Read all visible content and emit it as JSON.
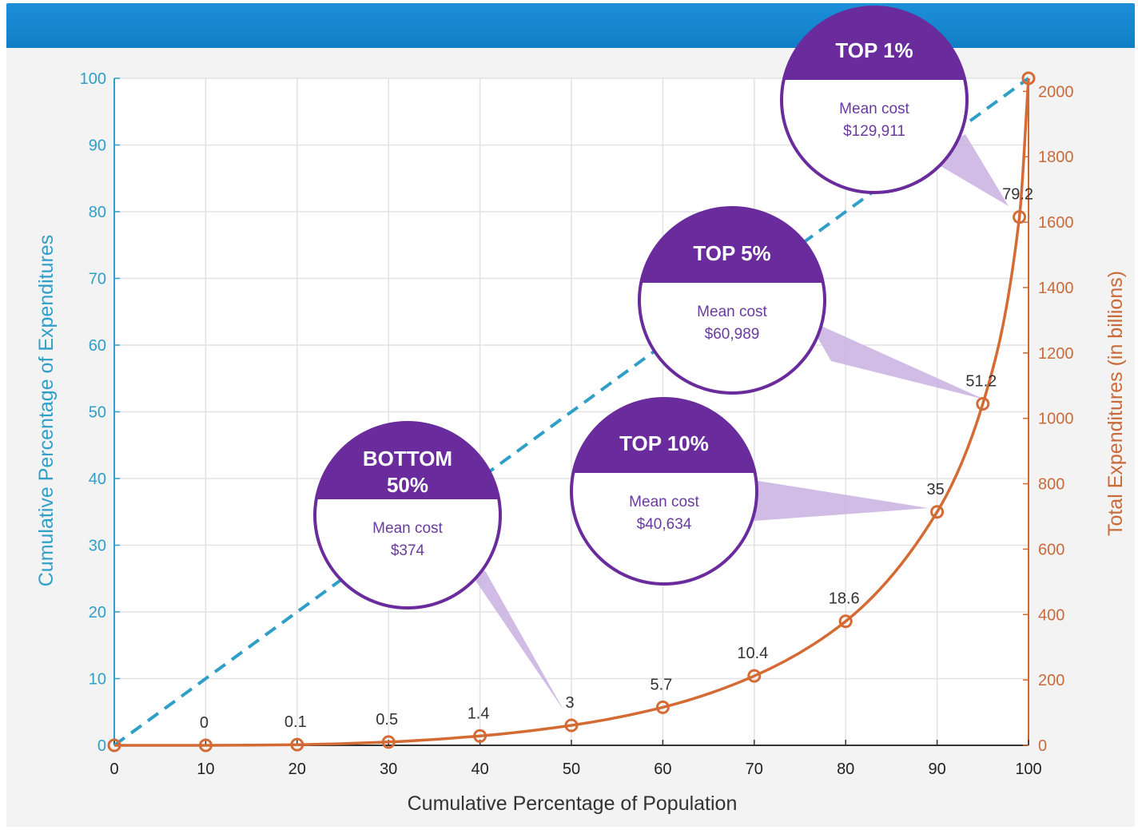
{
  "chart_data": {
    "type": "line",
    "title": "",
    "xlabel": "Cumulative Percentage of Population",
    "ylabel_left": "Cumulative Percentage of Expenditures",
    "ylabel_right": "Total Expenditures (in billions)",
    "x_ticks": [
      "0",
      "10",
      "20",
      "30",
      "40",
      "50",
      "60",
      "70",
      "80",
      "90",
      "100"
    ],
    "y_left_ticks": [
      "0",
      "10",
      "20",
      "30",
      "40",
      "50",
      "60",
      "70",
      "80",
      "90",
      "100"
    ],
    "y_right_ticks": [
      "0",
      "200",
      "400",
      "600",
      "800",
      "1000",
      "1200",
      "1400",
      "1600",
      "1800",
      "2000"
    ],
    "xlim": [
      0,
      100
    ],
    "ylim_left": [
      0,
      100
    ],
    "ylim_right": [
      0,
      2040
    ],
    "grid": true,
    "series": [
      {
        "style": "dashed",
        "color": "#2f9fc8",
        "axis": "left",
        "x": [
          0,
          100
        ],
        "y": [
          0,
          100
        ]
      },
      {
        "style": "solid-markers",
        "color": "#d46b35",
        "axis": "left",
        "points": [
          {
            "x": 0,
            "y": 0,
            "label": ""
          },
          {
            "x": 10,
            "y": 0,
            "label": "0"
          },
          {
            "x": 20,
            "y": 0.1,
            "label": "0.1"
          },
          {
            "x": 30,
            "y": 0.5,
            "label": "0.5"
          },
          {
            "x": 40,
            "y": 1.4,
            "label": "1.4"
          },
          {
            "x": 50,
            "y": 3,
            "label": "3"
          },
          {
            "x": 60,
            "y": 5.7,
            "label": "5.7"
          },
          {
            "x": 70,
            "y": 10.4,
            "label": "10.4"
          },
          {
            "x": 80,
            "y": 18.6,
            "label": "18.6"
          },
          {
            "x": 90,
            "y": 35,
            "label": "35"
          },
          {
            "x": 95,
            "y": 51.2,
            "label": "51.2"
          },
          {
            "x": 99,
            "y": 79.2,
            "label": "79.2"
          },
          {
            "x": 100,
            "y": 100,
            "label": ""
          }
        ]
      }
    ],
    "callouts": [
      {
        "heading": [
          "TOP 1%"
        ],
        "caption": "Mean cost",
        "value": "$129,911",
        "points_to_x": 99
      },
      {
        "heading": [
          "TOP 5%"
        ],
        "caption": "Mean cost",
        "value": "$60,989",
        "points_to_x": 95
      },
      {
        "heading": [
          "TOP 10%"
        ],
        "caption": "Mean cost",
        "value": "$40,634",
        "points_to_x": 90
      },
      {
        "heading": [
          "BOTTOM",
          "50%"
        ],
        "caption": "Mean cost",
        "value": "$374",
        "points_to_x": 50
      }
    ]
  },
  "colors": {
    "left_axis": "#2f9fc8",
    "right_axis": "#c96a3a",
    "curve": "#d46b35",
    "bubble_header": "#6a2c9c",
    "bubble_pointer": "#c9b0e0"
  }
}
